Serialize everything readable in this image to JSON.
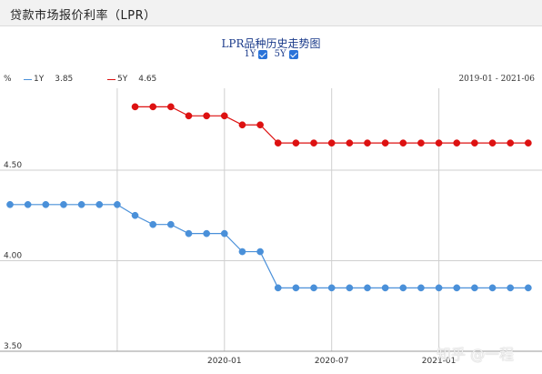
{
  "header": {
    "title": "贷款市场报价利率（LPR）"
  },
  "chart": {
    "title": "LPR品种历史走势图",
    "toggles": [
      {
        "label": "1Y",
        "checked": true
      },
      {
        "label": "5Y",
        "checked": true
      }
    ],
    "unit": "%",
    "legend": [
      {
        "name": "1Y",
        "value": "3.85",
        "color": "#4a90d9"
      },
      {
        "name": "5Y",
        "value": "4.65",
        "color": "#dd1111"
      }
    ],
    "date_range": "2019-01 - 2021-06"
  },
  "chart_data": {
    "type": "line",
    "x": [
      "2019-08",
      "2019-09",
      "2019-10",
      "2019-11",
      "2019-12",
      "2020-01",
      "2020-02",
      "2020-03",
      "2020-04",
      "2020-05",
      "2020-06",
      "2020-07",
      "2020-08",
      "2020-09",
      "2020-10",
      "2020-11",
      "2020-12",
      "2021-01",
      "2021-02",
      "2021-03",
      "2021-04",
      "2021-05",
      "2021-06"
    ],
    "x_tick_labels": [
      "2020-01",
      "2020-07",
      "2021-01"
    ],
    "y_tick_labels": [
      "3.50",
      "4.00",
      "4.50"
    ],
    "ylim": [
      3.5,
      5.0
    ],
    "series": [
      {
        "name": "1Y",
        "color": "#4a90d9",
        "points": [
          [
            "2019-01",
            4.31
          ],
          [
            "2019-02",
            4.31
          ],
          [
            "2019-03",
            4.31
          ],
          [
            "2019-04",
            4.31
          ],
          [
            "2019-05",
            4.31
          ],
          [
            "2019-06",
            4.31
          ],
          [
            "2019-07",
            4.31
          ],
          [
            "2019-08",
            4.25
          ],
          [
            "2019-09",
            4.2
          ],
          [
            "2019-10",
            4.2
          ],
          [
            "2019-11",
            4.15
          ],
          [
            "2019-12",
            4.15
          ],
          [
            "2020-01",
            4.15
          ],
          [
            "2020-02",
            4.05
          ],
          [
            "2020-03",
            4.05
          ],
          [
            "2020-04",
            3.85
          ],
          [
            "2020-05",
            3.85
          ],
          [
            "2020-06",
            3.85
          ],
          [
            "2020-07",
            3.85
          ],
          [
            "2020-08",
            3.85
          ],
          [
            "2020-09",
            3.85
          ],
          [
            "2020-10",
            3.85
          ],
          [
            "2020-11",
            3.85
          ],
          [
            "2020-12",
            3.85
          ],
          [
            "2021-01",
            3.85
          ],
          [
            "2021-02",
            3.85
          ],
          [
            "2021-03",
            3.85
          ],
          [
            "2021-04",
            3.85
          ],
          [
            "2021-05",
            3.85
          ],
          [
            "2021-06",
            3.85
          ]
        ]
      },
      {
        "name": "5Y",
        "color": "#dd1111",
        "points": [
          [
            "2019-08",
            4.85
          ],
          [
            "2019-09",
            4.85
          ],
          [
            "2019-10",
            4.85
          ],
          [
            "2019-11",
            4.8
          ],
          [
            "2019-12",
            4.8
          ],
          [
            "2020-01",
            4.8
          ],
          [
            "2020-02",
            4.75
          ],
          [
            "2020-03",
            4.75
          ],
          [
            "2020-04",
            4.65
          ],
          [
            "2020-05",
            4.65
          ],
          [
            "2020-06",
            4.65
          ],
          [
            "2020-07",
            4.65
          ],
          [
            "2020-08",
            4.65
          ],
          [
            "2020-09",
            4.65
          ],
          [
            "2020-10",
            4.65
          ],
          [
            "2020-11",
            4.65
          ],
          [
            "2020-12",
            4.65
          ],
          [
            "2021-01",
            4.65
          ],
          [
            "2021-02",
            4.65
          ],
          [
            "2021-03",
            4.65
          ],
          [
            "2021-04",
            4.65
          ],
          [
            "2021-05",
            4.65
          ],
          [
            "2021-06",
            4.65
          ]
        ]
      }
    ],
    "grid": true
  },
  "watermark": "知乎 @一程"
}
